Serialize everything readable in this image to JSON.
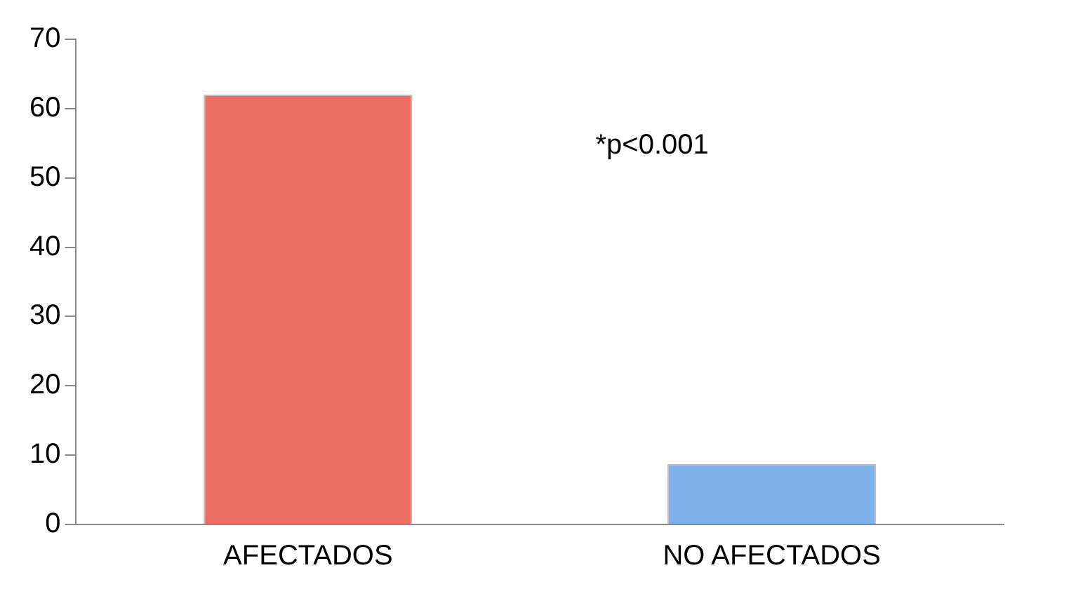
{
  "chart_data": {
    "type": "bar",
    "categories": [
      "AFECTADOS",
      "NO AFECTADOS"
    ],
    "values": [
      62,
      8.7
    ],
    "colors": [
      "#ec6e64",
      "#7fb2ea"
    ],
    "ylim": [
      0,
      70
    ],
    "yticks": [
      0,
      10,
      20,
      30,
      40,
      50,
      60,
      70
    ],
    "grid": false,
    "annotations": [
      "*p<0.001"
    ]
  }
}
